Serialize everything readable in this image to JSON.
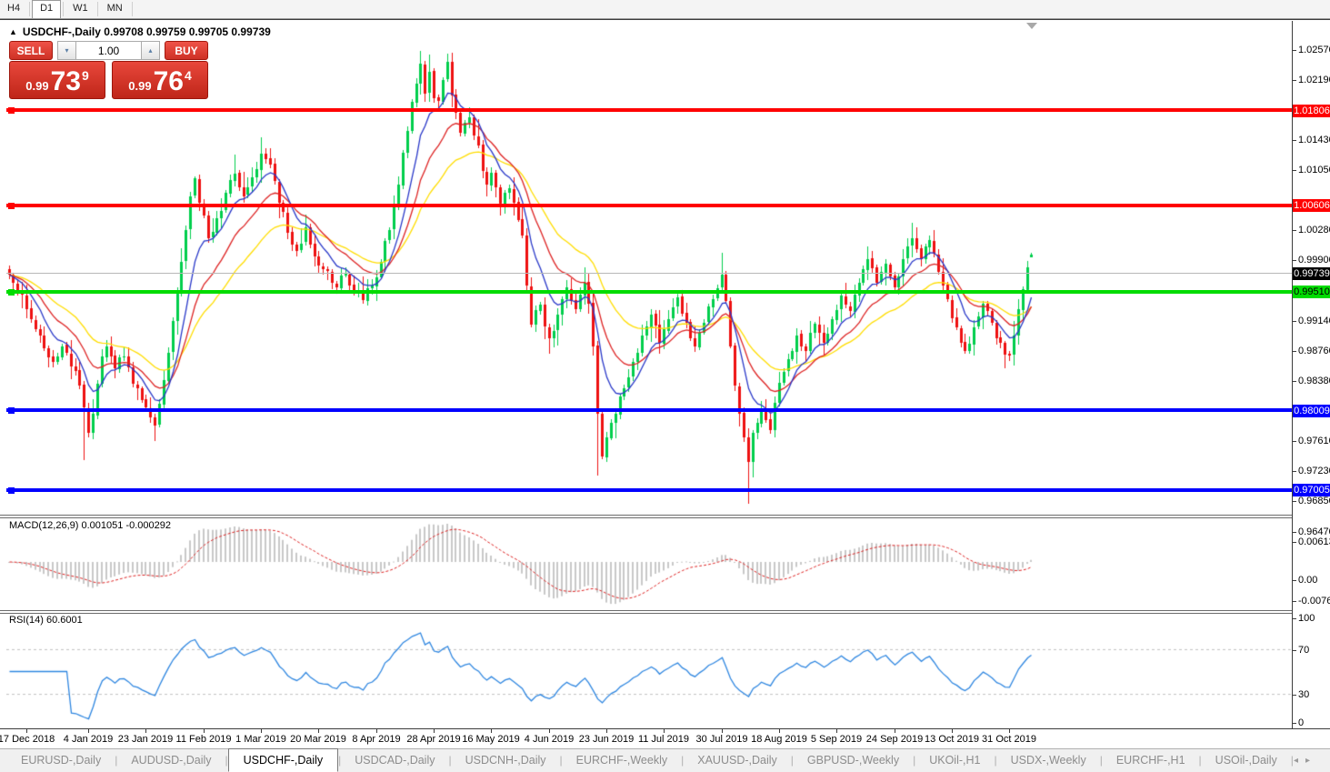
{
  "toolbar": {
    "timeframes": [
      {
        "label": "H4",
        "active": false
      },
      {
        "label": "D1",
        "active": true
      },
      {
        "label": "W1",
        "active": false
      },
      {
        "label": "MN",
        "active": false
      }
    ]
  },
  "chart": {
    "collapse_arrow": "▲",
    "symbol_title": "USDCHF-,Daily",
    "ohlc_text": "0.99708 0.99759 0.99705 0.99739"
  },
  "trade_panel": {
    "sell_label": "SELL",
    "buy_label": "BUY",
    "volume": "1.00",
    "down_arrow": "▾",
    "up_arrow": "▴",
    "bid": {
      "small": "0.99",
      "big": "73",
      "sup": "9"
    },
    "ask": {
      "small": "0.99",
      "big": "76",
      "sup": "4"
    }
  },
  "chart_data": {
    "type": "candlestick",
    "symbol": "USDCHF-",
    "timeframe": "Daily",
    "current_bar": {
      "open": "0.99708",
      "high": "0.99759",
      "low": "0.99705",
      "close": "0.99739"
    },
    "ylim": [
      0.9647,
      1.0257
    ],
    "bars_total": 232,
    "price_axis_ticks": [
      "1.02570",
      "1.02190",
      "1.01430",
      "1.01050",
      "1.00280",
      "0.99900",
      "0.99140",
      "0.98760",
      "0.98380",
      "0.97610",
      "0.97230",
      "0.96850",
      "0.96470"
    ],
    "levels": [
      {
        "value": 1.01806,
        "label": "1.01806",
        "type": "resistance",
        "color": "#ff0000",
        "text_color": "#ffffff"
      },
      {
        "value": 1.00606,
        "label": "1.00606",
        "type": "resistance",
        "color": "#ff0000",
        "text_color": "#ffffff"
      },
      {
        "value": 0.9951,
        "label": "0.99510",
        "type": "pivot",
        "color": "#00dc00",
        "text_color": "#000000"
      },
      {
        "value": 0.98009,
        "label": "0.98009",
        "type": "support",
        "color": "#0000ff",
        "text_color": "#ffffff"
      },
      {
        "value": 0.97005,
        "label": "0.97005",
        "type": "support",
        "color": "#0000ff",
        "text_color": "#ffffff"
      }
    ],
    "current_price": {
      "value": 0.99739,
      "label": "0.99739",
      "badge_bg": "#000000",
      "badge_text": "#ffffff"
    },
    "colors": {
      "candle_up": "#00ce4c",
      "candle_down": "#ee1111",
      "ma_fast": "#2837c8",
      "ma_medium": "#dd2222",
      "ma_slow": "#ffdd00",
      "macd_histogram": "#c8c8c8",
      "macd_signal": "#dd2222",
      "rsi_line": "#2e86e0",
      "rsi_levels": "#c0c0c0",
      "current_price_line": "#b8b8b8"
    },
    "moving_averages": [
      {
        "name": "fast-ema",
        "period": 8
      },
      {
        "name": "medium-ema",
        "period": 16
      },
      {
        "name": "slow-ema",
        "period": 30
      }
    ],
    "x_ticks": [
      {
        "bar": 4,
        "label": "17 Dec 2018"
      },
      {
        "bar": 18,
        "label": "4 Jan 2019"
      },
      {
        "bar": 31,
        "label": "23 Jan 2019"
      },
      {
        "bar": 44,
        "label": "11 Feb 2019"
      },
      {
        "bar": 57,
        "label": "1 Mar 2019"
      },
      {
        "bar": 70,
        "label": "20 Mar 2019"
      },
      {
        "bar": 83,
        "label": "8 Apr 2019"
      },
      {
        "bar": 96,
        "label": "28 Apr 2019"
      },
      {
        "bar": 109,
        "label": "16 May 2019"
      },
      {
        "bar": 122,
        "label": "4 Jun 2019"
      },
      {
        "bar": 135,
        "label": "23 Jun 2019"
      },
      {
        "bar": 148,
        "label": "11 Jul 2019"
      },
      {
        "bar": 161,
        "label": "30 Jul 2019"
      },
      {
        "bar": 174,
        "label": "18 Aug 2019"
      },
      {
        "bar": 187,
        "label": "5 Sep 2019"
      },
      {
        "bar": 200,
        "label": "24 Sep 2019"
      },
      {
        "bar": 213,
        "label": "13 Oct 2019"
      },
      {
        "bar": 226,
        "label": "31 Oct 2019"
      }
    ],
    "close_anchors": [
      [
        0,
        0.9948
      ],
      [
        2,
        0.9928
      ],
      [
        4,
        0.9905
      ],
      [
        6,
        0.988
      ],
      [
        8,
        0.9855
      ],
      [
        10,
        0.9838
      ],
      [
        12,
        0.9858
      ],
      [
        14,
        0.9832
      ],
      [
        16,
        0.9808
      ],
      [
        17,
        0.978
      ],
      [
        18,
        0.9748
      ],
      [
        19,
        0.9772
      ],
      [
        20,
        0.981
      ],
      [
        21,
        0.9845
      ],
      [
        22,
        0.9858
      ],
      [
        24,
        0.983
      ],
      [
        26,
        0.9845
      ],
      [
        28,
        0.981
      ],
      [
        30,
        0.979
      ],
      [
        32,
        0.9768
      ],
      [
        33,
        0.9758
      ],
      [
        34,
        0.9785
      ],
      [
        35,
        0.9815
      ],
      [
        36,
        0.985
      ],
      [
        37,
        0.989
      ],
      [
        38,
        0.9925
      ],
      [
        39,
        0.9965
      ],
      [
        40,
        1.0005
      ],
      [
        41,
        1.0048
      ],
      [
        42,
        1.007
      ],
      [
        43,
        1.004
      ],
      [
        45,
        0.9995
      ],
      [
        47,
        1.002
      ],
      [
        49,
        1.0052
      ],
      [
        51,
        1.0076
      ],
      [
        53,
        1.0048
      ],
      [
        55,
        1.0072
      ],
      [
        57,
        1.0102
      ],
      [
        59,
        1.0088
      ],
      [
        61,
        1.004
      ],
      [
        63,
        1.0002
      ],
      [
        65,
        0.9978
      ],
      [
        67,
        1.0008
      ],
      [
        69,
        0.9972
      ],
      [
        71,
        0.9955
      ],
      [
        74,
        0.9932
      ],
      [
        76,
        0.995
      ],
      [
        78,
        0.9928
      ],
      [
        80,
        0.9916
      ],
      [
        82,
        0.9935
      ],
      [
        84,
        0.9965
      ],
      [
        86,
        1.0005
      ],
      [
        88,
        1.0062
      ],
      [
        90,
        1.013
      ],
      [
        92,
        1.019
      ],
      [
        93,
        1.0215
      ],
      [
        94,
        1.0178
      ],
      [
        95,
        1.0205
      ],
      [
        96,
        1.0172
      ],
      [
        97,
        1.0168
      ],
      [
        98,
        1.0195
      ],
      [
        99,
        1.0218
      ],
      [
        100,
        1.0175
      ],
      [
        102,
        1.0128
      ],
      [
        104,
        1.0148
      ],
      [
        106,
        1.0112
      ],
      [
        108,
        1.0062
      ],
      [
        109,
        1.0078
      ],
      [
        111,
        1.0038
      ],
      [
        113,
        1.0058
      ],
      [
        115,
        1.0018
      ],
      [
        116,
        0.9998
      ],
      [
        117,
        0.9935
      ],
      [
        118,
        0.9885
      ],
      [
        120,
        0.991
      ],
      [
        122,
        0.9868
      ],
      [
        124,
        0.9898
      ],
      [
        126,
        0.9932
      ],
      [
        128,
        0.9905
      ],
      [
        130,
        0.9938
      ],
      [
        131,
        0.9912
      ],
      [
        132,
        0.9858
      ],
      [
        133,
        0.9772
      ],
      [
        134,
        0.9718
      ],
      [
        135,
        0.9742
      ],
      [
        137,
        0.9772
      ],
      [
        139,
        0.9805
      ],
      [
        141,
        0.9838
      ],
      [
        143,
        0.9872
      ],
      [
        145,
        0.9898
      ],
      [
        147,
        0.9862
      ],
      [
        149,
        0.9892
      ],
      [
        151,
        0.992
      ],
      [
        153,
        0.9888
      ],
      [
        155,
        0.9858
      ],
      [
        157,
        0.9888
      ],
      [
        159,
        0.9918
      ],
      [
        161,
        0.9948
      ],
      [
        162,
        0.9915
      ],
      [
        163,
        0.9858
      ],
      [
        164,
        0.9808
      ],
      [
        165,
        0.9772
      ],
      [
        166,
        0.9742
      ],
      [
        167,
        0.9712
      ],
      [
        168,
        0.9748
      ],
      [
        170,
        0.9778
      ],
      [
        172,
        0.9752
      ],
      [
        174,
        0.9812
      ],
      [
        176,
        0.9842
      ],
      [
        178,
        0.9872
      ],
      [
        180,
        0.9852
      ],
      [
        182,
        0.9886
      ],
      [
        184,
        0.9862
      ],
      [
        186,
        0.9892
      ],
      [
        188,
        0.9922
      ],
      [
        190,
        0.9902
      ],
      [
        192,
        0.9938
      ],
      [
        194,
        0.9968
      ],
      [
        196,
        0.9938
      ],
      [
        198,
        0.9962
      ],
      [
        200,
        0.9932
      ],
      [
        202,
        0.9968
      ],
      [
        204,
        0.9995
      ],
      [
        206,
        0.9968
      ],
      [
        208,
        0.9992
      ],
      [
        210,
        0.9952
      ],
      [
        212,
        0.9918
      ],
      [
        214,
        0.9882
      ],
      [
        216,
        0.9852
      ],
      [
        218,
        0.9882
      ],
      [
        220,
        0.9912
      ],
      [
        222,
        0.9888
      ],
      [
        224,
        0.9862
      ],
      [
        226,
        0.9846
      ],
      [
        227,
        0.9872
      ],
      [
        228,
        0.9905
      ],
      [
        229,
        0.993
      ],
      [
        230,
        0.9958
      ],
      [
        231,
        0.9974
      ]
    ],
    "wick_overrides": {
      "17": {
        "low": 0.9714
      },
      "33": {
        "low": 0.9738
      },
      "51": {
        "high": 1.0101
      },
      "57": {
        "high": 1.0122
      },
      "93": {
        "high": 1.0232
      },
      "99": {
        "high": 1.0228
      },
      "133": {
        "low": 0.9694
      },
      "161": {
        "high": 0.9976
      },
      "167": {
        "low": 0.9659
      },
      "194": {
        "high": 0.9984
      },
      "204": {
        "high": 1.0014
      },
      "231": {
        "open": 0.99708,
        "high": 0.99759,
        "low": 0.99705,
        "close": 0.99739
      }
    },
    "indicators": {
      "macd": {
        "display": "MACD(12,26,9) 0.001051 -0.000292",
        "params": [
          12,
          26,
          9
        ],
        "value_main": "0.001051",
        "value_signal": "-0.000292",
        "axis_ticks": [
          "0.00613",
          "0.00",
          "-0.007612"
        ]
      },
      "rsi": {
        "display": "RSI(14) 60.6001",
        "period": 14,
        "value": "60.6001",
        "axis_ticks": [
          "100",
          "70",
          "30",
          "0"
        ],
        "levels": [
          70,
          30
        ]
      }
    }
  },
  "tabs": {
    "items": [
      {
        "label": "EURUSD-,Daily",
        "active": false
      },
      {
        "label": "AUDUSD-,Daily",
        "active": false
      },
      {
        "label": "USDCHF-,Daily",
        "active": true
      },
      {
        "label": "USDCAD-,Daily",
        "active": false
      },
      {
        "label": "USDCNH-,Daily",
        "active": false
      },
      {
        "label": "EURCHF-,Weekly",
        "active": false
      },
      {
        "label": "XAUUSD-,Daily",
        "active": false
      },
      {
        "label": "GBPUSD-,Weekly",
        "active": false
      },
      {
        "label": "UKOil-,H1",
        "active": false
      },
      {
        "label": "USDX-,Weekly",
        "active": false
      },
      {
        "label": "EURCHF-,H1",
        "active": false
      },
      {
        "label": "USOil-,Daily",
        "active": false
      }
    ],
    "scroll_left": "◂",
    "scroll_right": "▸"
  }
}
